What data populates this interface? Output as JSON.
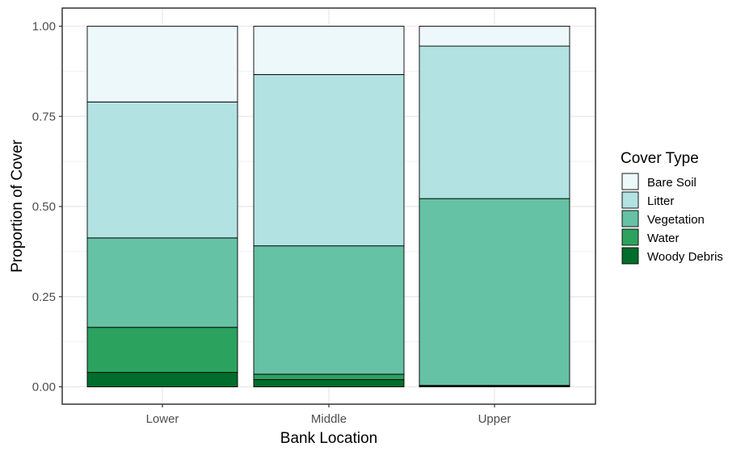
{
  "chart_data": {
    "type": "bar",
    "stacked": true,
    "categories": [
      "Lower",
      "Middle",
      "Upper"
    ],
    "xlabel": "Bank Location",
    "ylabel": "Proportion of Cover",
    "ylim": [
      0,
      1
    ],
    "yticks": [
      "0.00",
      "0.25",
      "0.50",
      "0.75",
      "1.00"
    ],
    "grid": true,
    "legend": {
      "title": "Cover Type",
      "position": "right"
    },
    "series": [
      {
        "name": "Woody Debris",
        "color": "#006d2c",
        "values": [
          0.04,
          0.02,
          0.002
        ]
      },
      {
        "name": "Water",
        "color": "#2ca25f",
        "values": [
          0.125,
          0.015,
          0.002
        ]
      },
      {
        "name": "Vegetation",
        "color": "#66c2a4",
        "values": [
          0.248,
          0.356,
          0.518
        ]
      },
      {
        "name": "Litter",
        "color": "#b2e2e2",
        "values": [
          0.377,
          0.475,
          0.423
        ]
      },
      {
        "name": "Bare Soil",
        "color": "#edf8fb",
        "values": [
          0.21,
          0.134,
          0.055
        ]
      }
    ],
    "legend_order": [
      "Bare Soil",
      "Litter",
      "Vegetation",
      "Water",
      "Woody Debris"
    ]
  }
}
